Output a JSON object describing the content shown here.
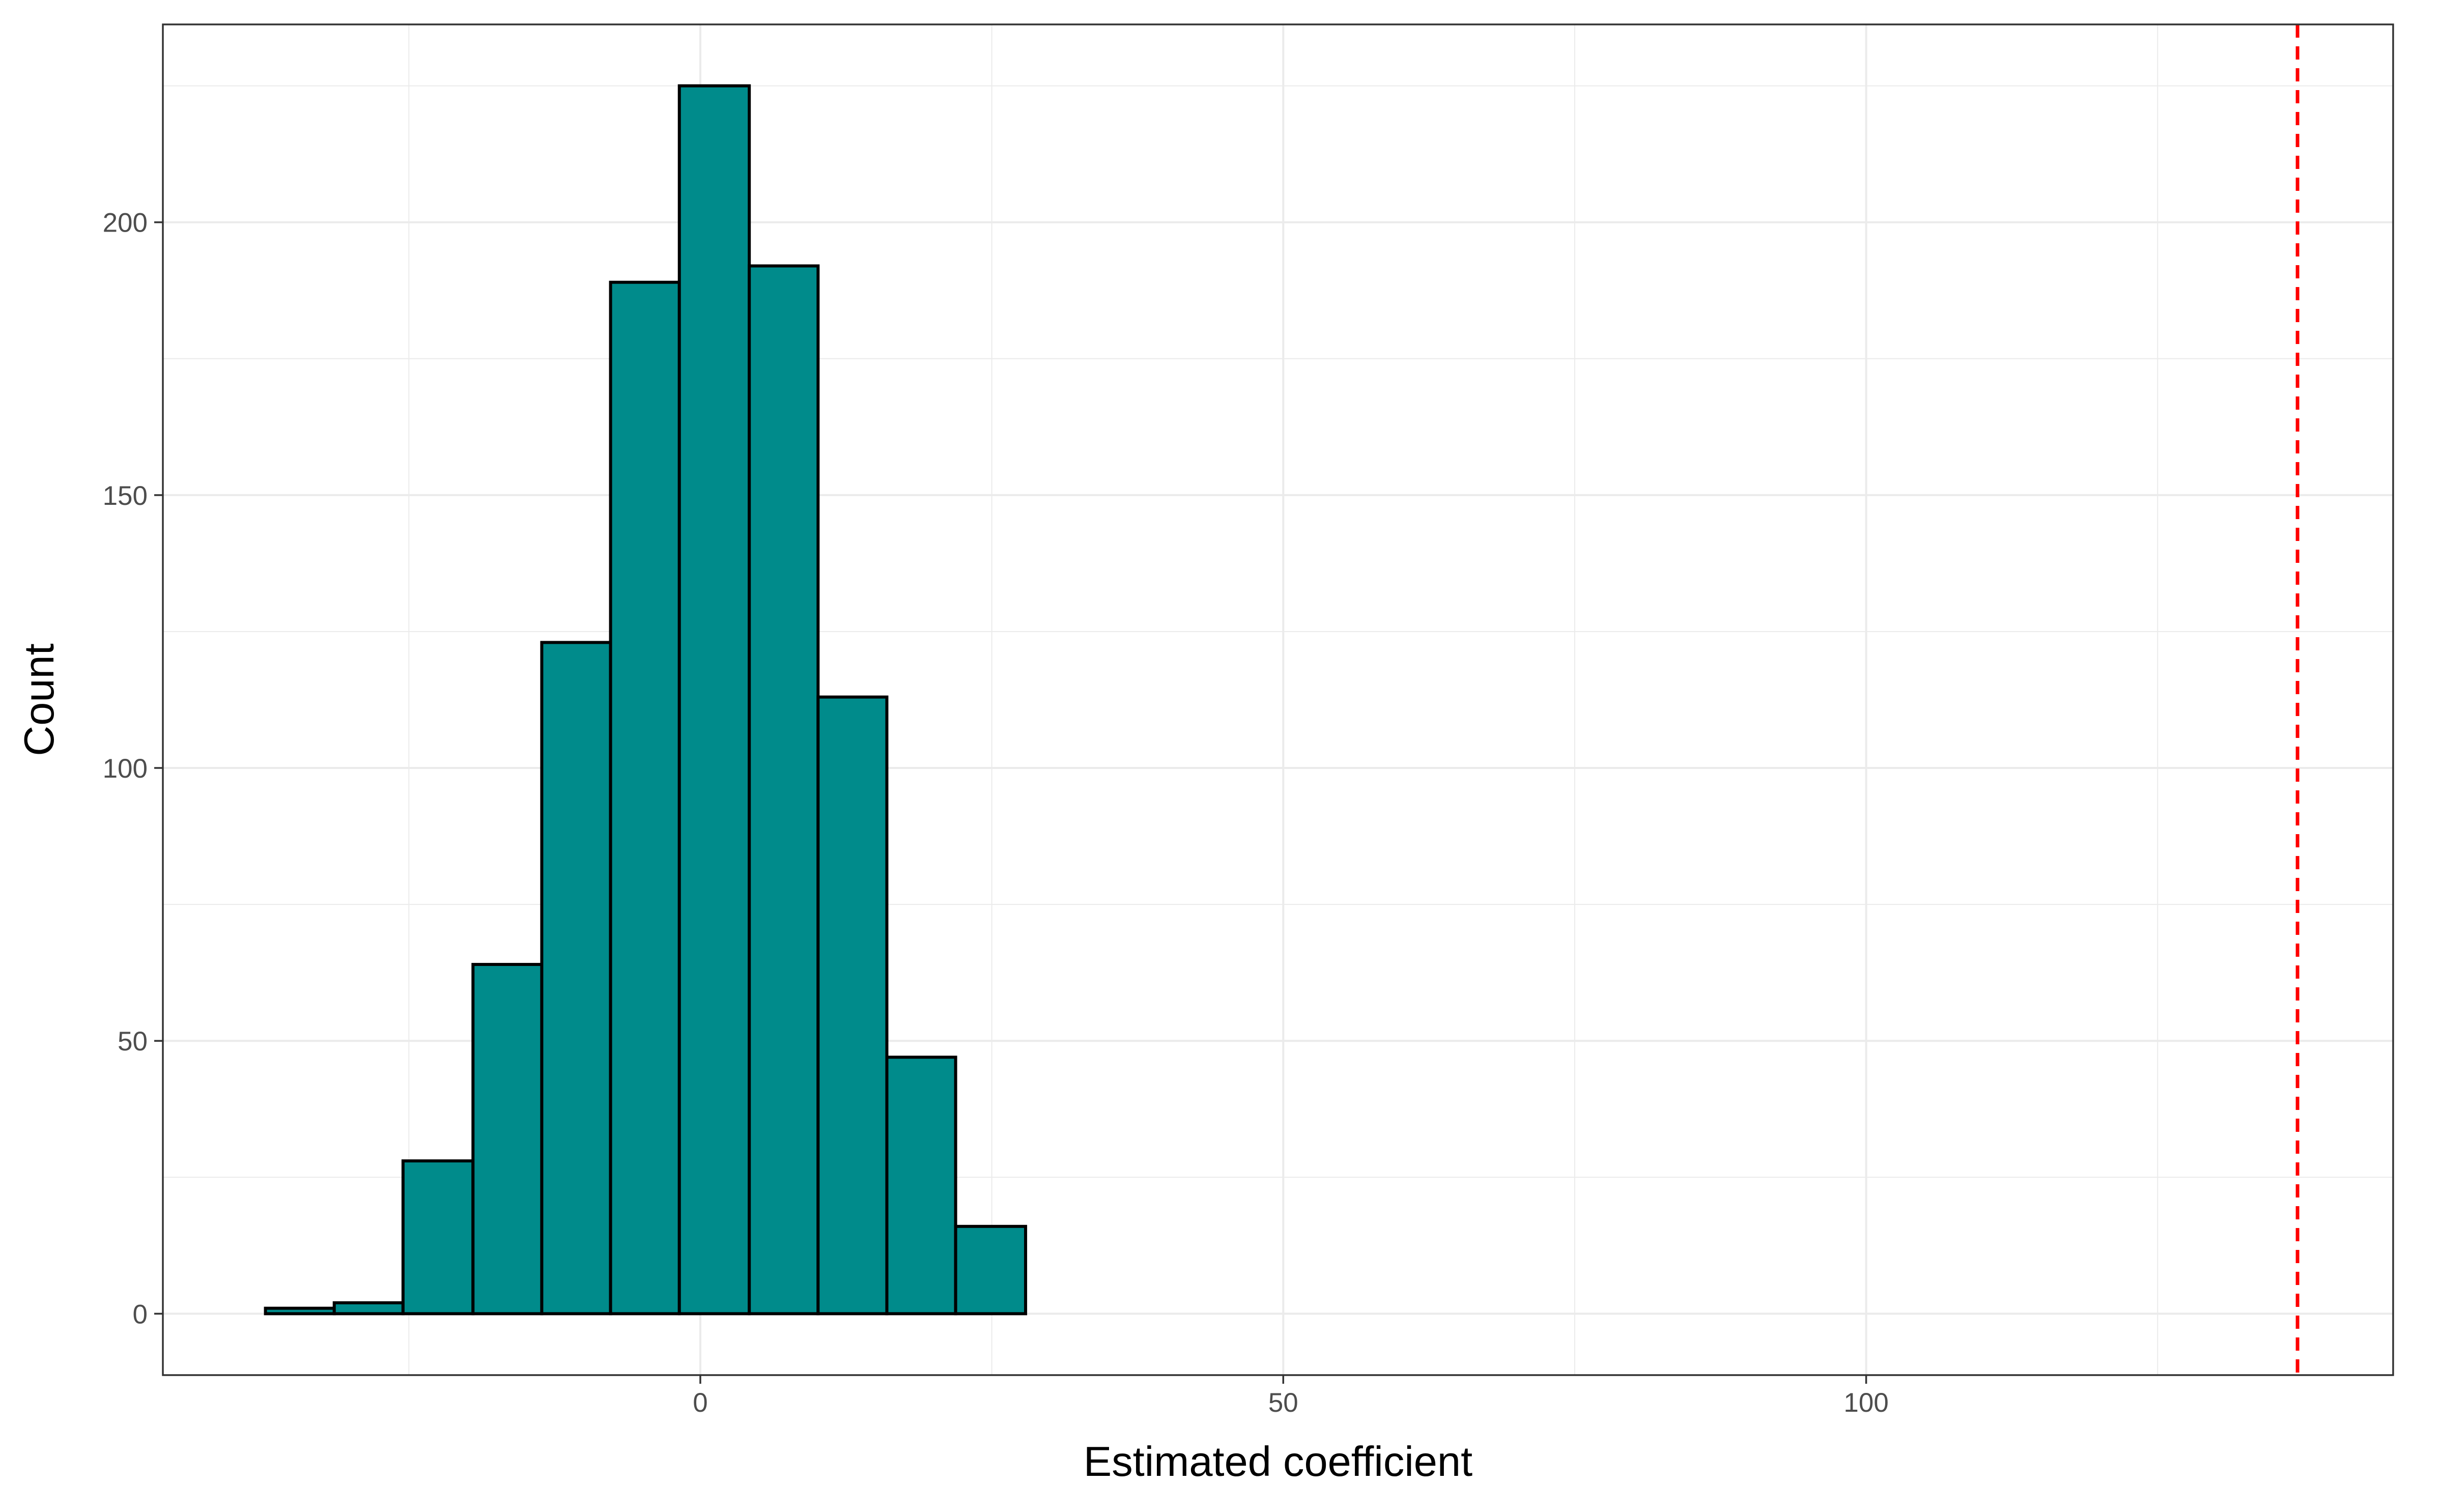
{
  "chart_data": {
    "type": "bar",
    "xlabel": "Estimated coefficient",
    "ylabel": "Count",
    "xlim": [
      -46.1,
      145.2
    ],
    "ylim": [
      -11.25,
      236.25
    ],
    "x_ticks": [
      0,
      50,
      100
    ],
    "x_tick_labels": [
      "0",
      "50",
      "100"
    ],
    "x_minor_ticks": [
      -25,
      25,
      75,
      125
    ],
    "y_ticks": [
      0,
      50,
      100,
      150,
      200
    ],
    "y_tick_labels": [
      "0",
      "50",
      "100",
      "150",
      "200"
    ],
    "y_minor_ticks": [
      25,
      75,
      125,
      175,
      225
    ],
    "grid": true,
    "bin_width": 5.93,
    "bins": [
      {
        "x0": -37.3,
        "x1": -31.4,
        "count": 1
      },
      {
        "x0": -31.4,
        "x1": -25.5,
        "count": 2
      },
      {
        "x0": -25.5,
        "x1": -19.5,
        "count": 28
      },
      {
        "x0": -19.5,
        "x1": -13.6,
        "count": 64
      },
      {
        "x0": -13.6,
        "x1": -7.7,
        "count": 123
      },
      {
        "x0": -7.7,
        "x1": -1.8,
        "count": 189
      },
      {
        "x0": -1.8,
        "x1": 4.2,
        "count": 225
      },
      {
        "x0": 4.2,
        "x1": 10.1,
        "count": 192
      },
      {
        "x0": 10.1,
        "x1": 16.0,
        "count": 113
      },
      {
        "x0": 16.0,
        "x1": 21.9,
        "count": 47
      },
      {
        "x0": 21.9,
        "x1": 27.9,
        "count": 16
      },
      {
        "x0": 27.9,
        "x1": 139.4,
        "count": 0
      }
    ],
    "reference_line": {
      "x": 137.0,
      "style": "dashed",
      "color": "#FF0000"
    },
    "colors": {
      "bar_fill": "#008B8B",
      "bar_outline": "#000000",
      "grid": "#EBEBEB",
      "panel_border": "#333333"
    }
  }
}
